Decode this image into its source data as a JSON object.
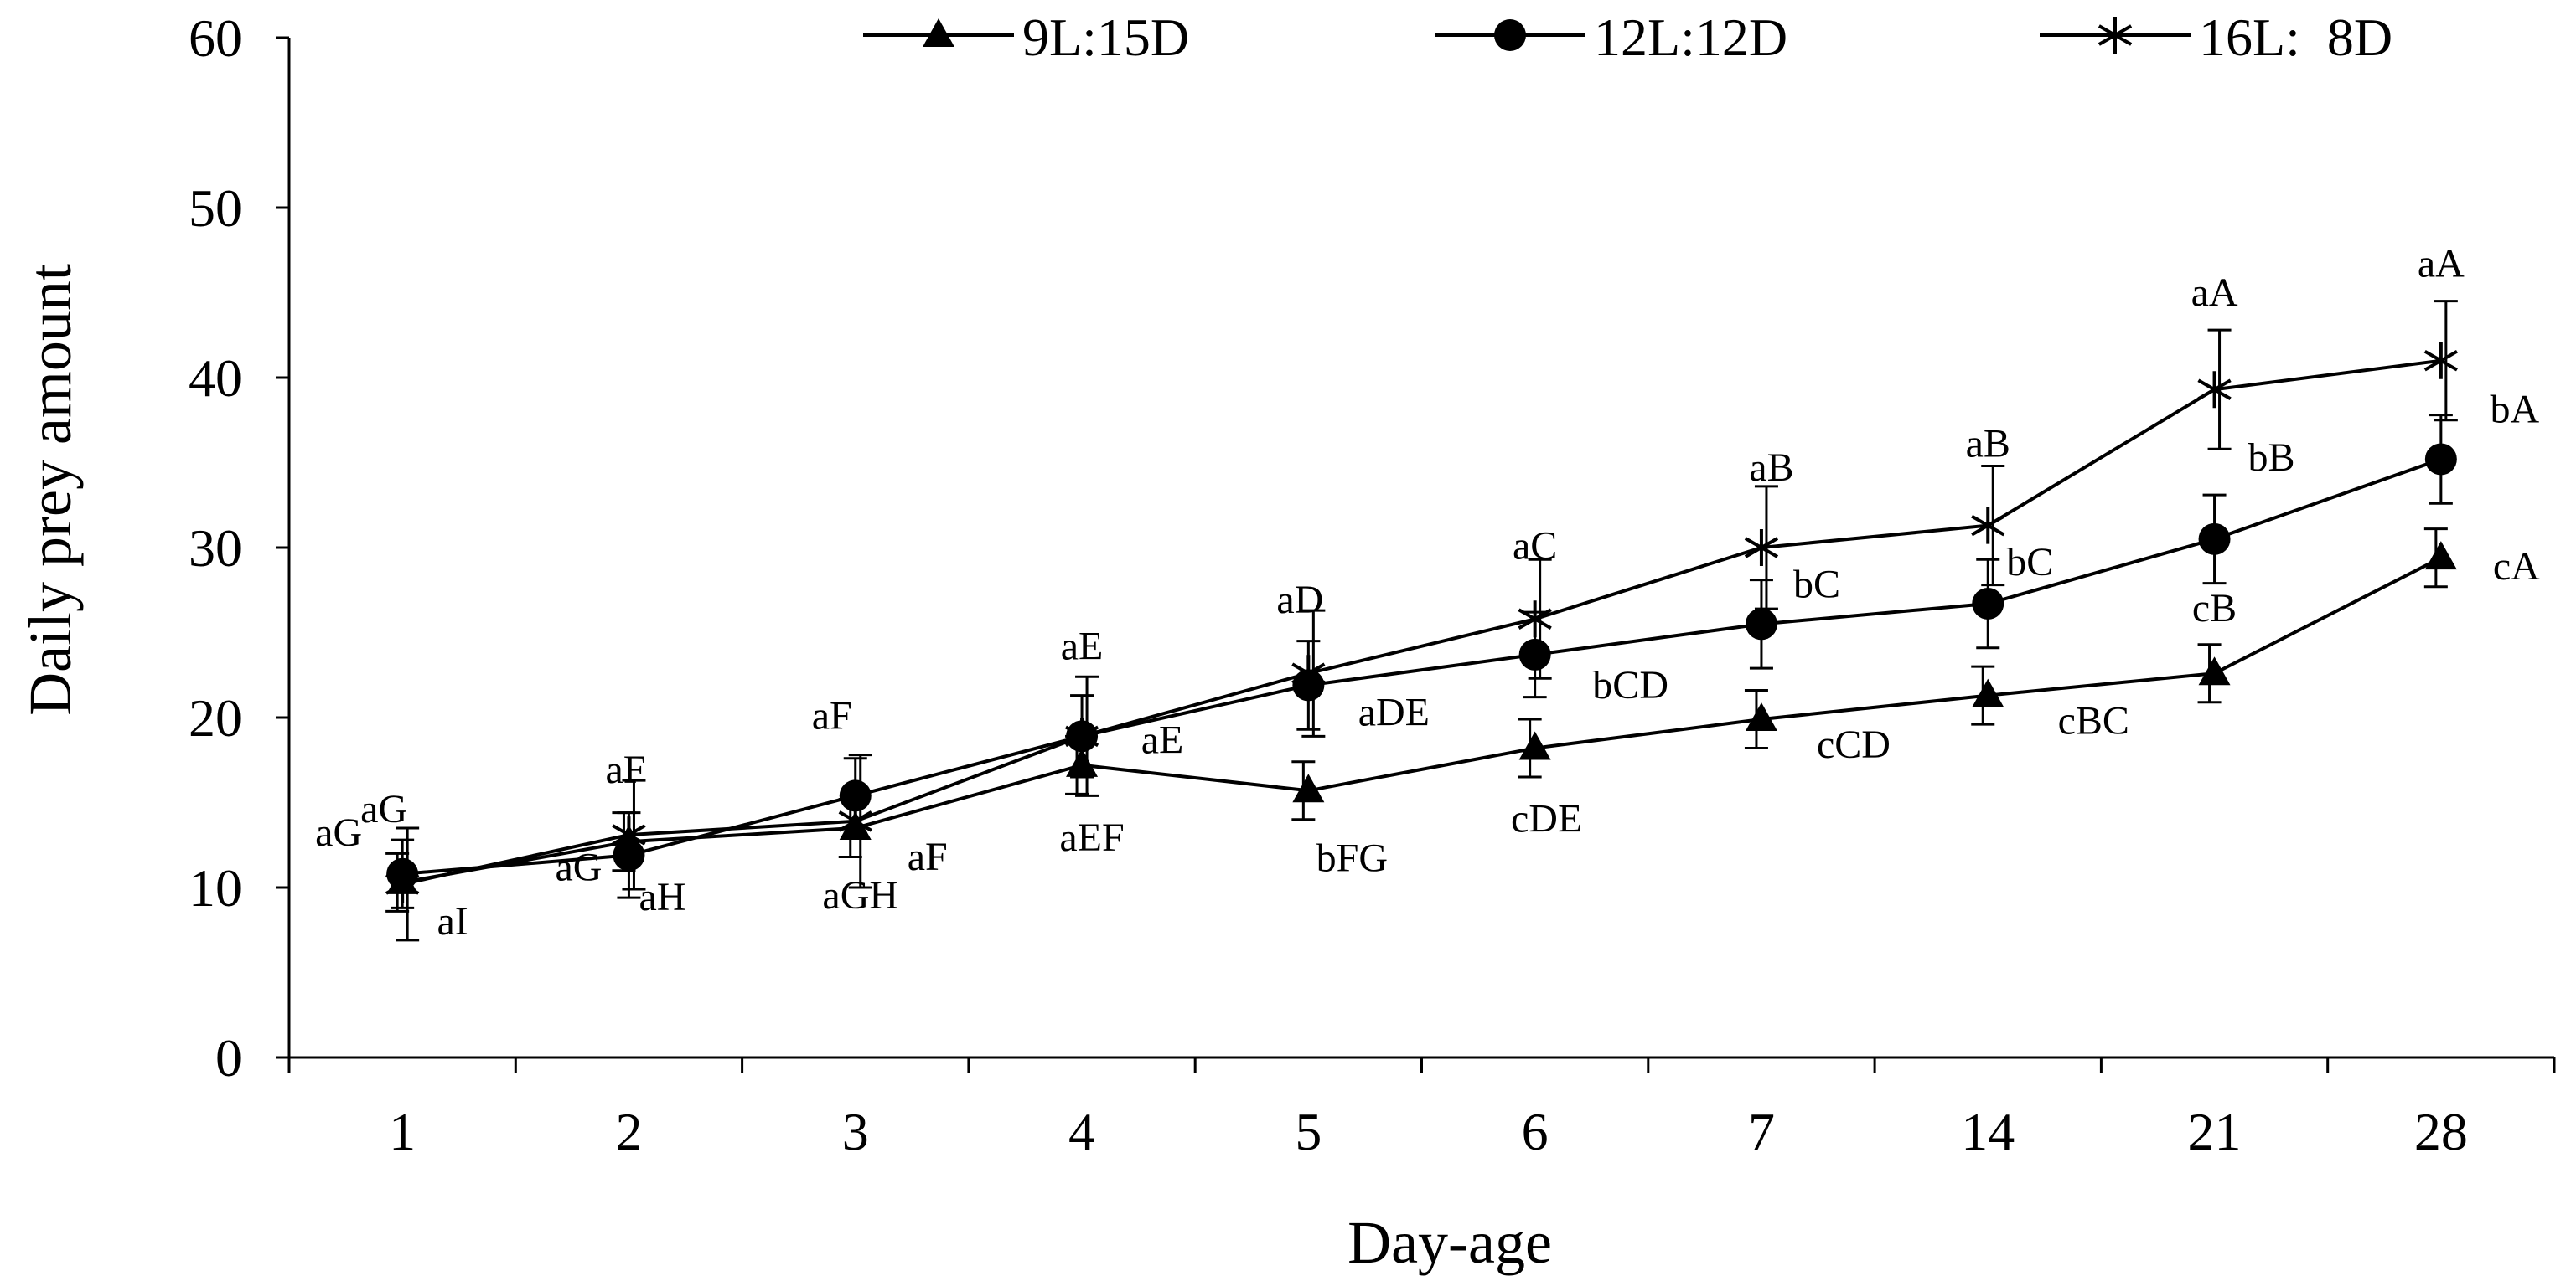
{
  "chart_data": {
    "type": "line",
    "title": "",
    "xlabel": "Day-age",
    "ylabel": "Daily prey amount",
    "ylim": [
      0,
      60
    ],
    "yticks": [
      0,
      10,
      20,
      30,
      40,
      50,
      60
    ],
    "categories": [
      "1",
      "2",
      "3",
      "4",
      "5",
      "6",
      "7",
      "14",
      "21",
      "28"
    ],
    "legend_position": "top",
    "series": [
      {
        "name": "9L:15D",
        "marker": "triangle",
        "values": [
          10.3,
          12.7,
          13.5,
          17.2,
          15.7,
          18.2,
          19.9,
          21.3,
          22.6,
          29.4
        ],
        "errors": [
          1.7,
          1.7,
          1.7,
          1.7,
          1.7,
          1.7,
          1.7,
          1.7,
          1.7,
          1.7
        ],
        "labels": [
          "aI",
          "aH",
          "aGH",
          "aEF",
          "bFG",
          "cDE",
          "cCD",
          "cBC",
          "cB",
          "cA"
        ]
      },
      {
        "name": "12L:12D",
        "marker": "circle",
        "values": [
          10.8,
          11.9,
          15.4,
          18.9,
          21.9,
          23.7,
          25.5,
          26.7,
          30.5,
          35.2
        ],
        "errors": [
          2.0,
          2.5,
          2.2,
          2.4,
          2.6,
          2.5,
          2.6,
          2.6,
          2.6,
          2.6
        ],
        "labels": [
          "aG",
          "aG",
          "aF",
          "aE",
          "aDE",
          "bCD",
          "bC",
          "bC",
          "bB",
          "bA"
        ]
      },
      {
        "name": "16L:  8D",
        "marker": "asterisk",
        "values": [
          10.2,
          13.1,
          13.9,
          18.9,
          22.6,
          25.8,
          30.0,
          31.3,
          39.3,
          41.0
        ],
        "errors": [
          3.3,
          3.2,
          3.9,
          3.5,
          3.7,
          3.5,
          3.6,
          3.5,
          3.5,
          3.5
        ],
        "labels": [
          "aG",
          "aF",
          "aF",
          "aE",
          "aD",
          "aC",
          "aB",
          "aB",
          "aA",
          "aA"
        ]
      }
    ]
  }
}
